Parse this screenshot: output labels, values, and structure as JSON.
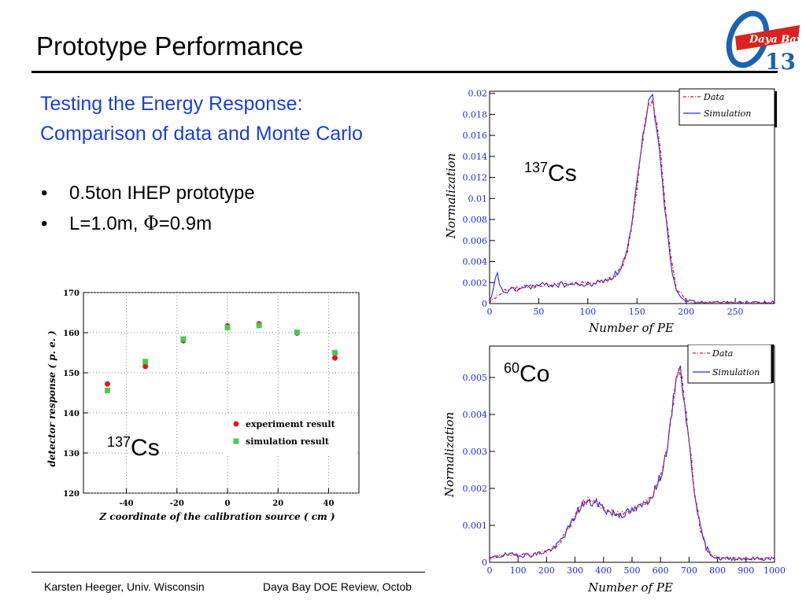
{
  "slide": {
    "title": "Prototype Performance",
    "subtitle_line1": "Testing the Energy Response:",
    "subtitle_line2": "Comparison of data and Monte Carlo",
    "bullets": [
      {
        "text_a": "0.5ton IHEP prototype"
      },
      {
        "text_a": "L=1.0m, ",
        "symbol": "Φ",
        "text_b": "=0.9m"
      }
    ],
    "footer_left": "Karsten Heeger, Univ. Wisconsin",
    "footer_right": "Daya Bay DOE Review, Octob",
    "logo": {
      "text": "Daya Bay",
      "number": "13",
      "icon": "daya-bay-theta13-logo"
    },
    "colors": {
      "subtitle": "#1a3fd0",
      "data": "#e8141c",
      "simulation": "#1f2be6",
      "sim_marker": "#4cc94c"
    }
  },
  "chart_data": [
    {
      "type": "scatter",
      "xlabel": "Z coordinate of the calibration source ( cm )",
      "ylabel": "detector response ( p. e. )",
      "xlim": [
        -57,
        52
      ],
      "ylim": [
        120,
        170
      ],
      "xticks": [
        -40,
        -20,
        0,
        20,
        40
      ],
      "yticks": [
        120,
        130,
        140,
        150,
        160,
        170
      ],
      "grid": true,
      "legend_position": "lower-right",
      "annotation": {
        "mass": "137",
        "element": "Cs"
      },
      "series": [
        {
          "name": "experimemt result",
          "marker": "circle",
          "color": "#e8141c",
          "x": [
            -47.5,
            -32.5,
            -17.5,
            0,
            12.5,
            27.5,
            42.5
          ],
          "y": [
            147.2,
            151.6,
            158.0,
            161.7,
            162.2,
            159.9,
            153.7
          ]
        },
        {
          "name": "simulation result",
          "marker": "square",
          "color": "#4cc94c",
          "x": [
            -47.5,
            -32.5,
            -17.5,
            0,
            12.5,
            27.5,
            42.5
          ],
          "y": [
            145.6,
            152.8,
            158.4,
            161.3,
            161.8,
            160.1,
            155.0
          ]
        }
      ]
    },
    {
      "type": "line",
      "xlabel": "Number of PE",
      "ylabel": "Normalization",
      "xlim": [
        0,
        290
      ],
      "ylim": [
        0,
        0.0202
      ],
      "xticks": [
        0,
        50,
        100,
        150,
        200,
        250
      ],
      "yticks": [
        0,
        0.002,
        0.004,
        0.006,
        0.008,
        0.01,
        0.012,
        0.014,
        0.016,
        0.018,
        0.02
      ],
      "ytick_labels": [
        "0",
        "0.002",
        "0.004",
        "0.006",
        "0.008",
        "0.01",
        "0.012",
        "0.014",
        "0.016",
        "0.018",
        "0.02"
      ],
      "legend_position": "top-right",
      "annotation": {
        "mass": "137",
        "element": "Cs"
      },
      "series": [
        {
          "name": "Data",
          "style": "dash-dot",
          "color": "#e8141c",
          "x": [
            0,
            5,
            10,
            15,
            20,
            30,
            40,
            60,
            80,
            100,
            110,
            120,
            130,
            135,
            140,
            145,
            150,
            155,
            160,
            165,
            170,
            175,
            180,
            185,
            190,
            200,
            210,
            250,
            290
          ],
          "y": [
            0.0001,
            0.0005,
            0.0008,
            0.0012,
            0.0014,
            0.0015,
            0.0016,
            0.0018,
            0.0019,
            0.0019,
            0.0021,
            0.0023,
            0.0028,
            0.0035,
            0.0048,
            0.0072,
            0.0108,
            0.0148,
            0.0182,
            0.0196,
            0.0178,
            0.0135,
            0.0082,
            0.004,
            0.0015,
            0.0003,
            0.0001,
            0.0001,
            0.0001
          ]
        },
        {
          "name": "Simulation",
          "style": "solid",
          "color": "#1f2be6",
          "x": [
            0,
            3,
            6,
            8,
            10,
            12,
            15,
            20,
            30,
            40,
            60,
            80,
            100,
            110,
            120,
            130,
            135,
            140,
            145,
            150,
            155,
            160,
            165,
            170,
            175,
            180,
            185,
            190,
            200,
            210,
            250,
            290
          ],
          "y": [
            0.0001,
            0.0008,
            0.0024,
            0.0027,
            0.002,
            0.0013,
            0.0011,
            0.0012,
            0.0014,
            0.0016,
            0.0018,
            0.0018,
            0.0018,
            0.002,
            0.0023,
            0.0029,
            0.0037,
            0.005,
            0.0075,
            0.0112,
            0.015,
            0.0185,
            0.0199,
            0.0172,
            0.0128,
            0.0075,
            0.0036,
            0.0013,
            0.0003,
            0.0001,
            0.0001,
            0.0001
          ]
        }
      ]
    },
    {
      "type": "line",
      "xlabel": "Number of PE",
      "ylabel": "Normalization",
      "xlim": [
        0,
        1000
      ],
      "ylim": [
        0,
        0.00585
      ],
      "xticks": [
        0,
        100,
        200,
        300,
        400,
        500,
        600,
        700,
        800,
        900,
        1000
      ],
      "yticks": [
        0,
        0.001,
        0.002,
        0.003,
        0.004,
        0.005
      ],
      "ytick_labels": [
        "0",
        "0.001",
        "0.002",
        "0.003",
        "0.004",
        "0.005"
      ],
      "legend_position": "top-right",
      "annotation": {
        "mass": "60",
        "element": "Co"
      },
      "series": [
        {
          "name": "Data",
          "style": "dash-dot",
          "color": "#e8141c",
          "x": [
            0,
            50,
            100,
            150,
            200,
            230,
            260,
            290,
            310,
            330,
            350,
            380,
            410,
            440,
            470,
            500,
            530,
            560,
            590,
            610,
            630,
            650,
            665,
            680,
            700,
            720,
            740,
            760,
            780,
            800,
            850,
            1000
          ],
          "y": [
            0.0001,
            0.0002,
            0.0002,
            0.0002,
            0.0003,
            0.0004,
            0.0007,
            0.0011,
            0.0014,
            0.0016,
            0.0017,
            0.0016,
            0.0014,
            0.0013,
            0.0013,
            0.0014,
            0.0015,
            0.0017,
            0.0021,
            0.0026,
            0.0034,
            0.0046,
            0.0053,
            0.0047,
            0.0033,
            0.0019,
            0.0009,
            0.0004,
            0.0002,
            0.0001,
            0.0001,
            0.0001
          ]
        },
        {
          "name": "Simulation",
          "style": "solid",
          "color": "#1f2be6",
          "x": [
            0,
            50,
            100,
            150,
            200,
            230,
            260,
            290,
            310,
            330,
            350,
            380,
            410,
            440,
            470,
            500,
            530,
            560,
            590,
            610,
            630,
            650,
            665,
            680,
            700,
            720,
            740,
            760,
            780,
            800,
            850,
            1000
          ],
          "y": [
            0.0001,
            0.0002,
            0.0002,
            0.0002,
            0.0003,
            0.0004,
            0.0007,
            0.0011,
            0.0014,
            0.0016,
            0.0016,
            0.0016,
            0.0014,
            0.0013,
            0.0013,
            0.0014,
            0.0015,
            0.0017,
            0.0021,
            0.0026,
            0.0034,
            0.0047,
            0.0054,
            0.0046,
            0.0032,
            0.0019,
            0.0009,
            0.0004,
            0.0002,
            0.0001,
            0.0001,
            0.0001
          ]
        }
      ]
    }
  ]
}
